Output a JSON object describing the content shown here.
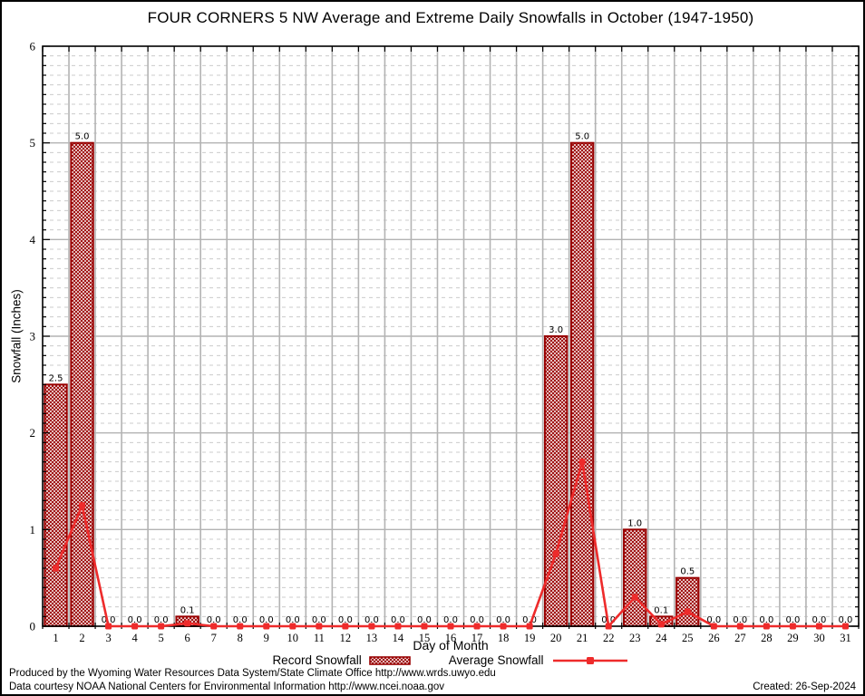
{
  "title": "FOUR CORNERS 5 NW Average and Extreme Daily Snowfalls in October (1947-1950)",
  "legend": {
    "record_label": "Record Snowfall",
    "average_label": "Average Snowfall"
  },
  "footer": {
    "line1": "Produced by the Wyoming Water Resources Data System/State Climate Office http://www.wrds.uwyo.edu",
    "line2": "Data courtesy NOAA National Centers for Environmental Information http://www.ncei.noaa.gov",
    "created": "Created: 26-Sep-2024"
  },
  "chart_data": {
    "type": "bar",
    "title": "FOUR CORNERS 5 NW Average and Extreme Daily Snowfalls in October (1947-1950)",
    "xlabel": "Day of Month",
    "ylabel": "Snowfall (Inches)",
    "ylim": [
      0,
      6
    ],
    "y_major_step": 1,
    "y_minor_step": 0.1,
    "grid": true,
    "legend_position": "bottom",
    "categories": [
      1,
      2,
      3,
      4,
      5,
      6,
      7,
      8,
      9,
      10,
      11,
      12,
      13,
      14,
      15,
      16,
      17,
      18,
      19,
      20,
      21,
      22,
      23,
      24,
      25,
      26,
      27,
      28,
      29,
      30,
      31
    ],
    "series": [
      {
        "name": "Record Snowfall",
        "type": "bar",
        "value_labels": true,
        "values": [
          2.5,
          5.0,
          0.0,
          0.0,
          0.0,
          0.1,
          0.0,
          0.0,
          0.0,
          0.0,
          0.0,
          0.0,
          0.0,
          0.0,
          0.0,
          0.0,
          0.0,
          0.0,
          0.0,
          3.0,
          5.0,
          0.0,
          1.0,
          0.1,
          0.5,
          0.0,
          0.0,
          0.0,
          0.0,
          0.0,
          0.0
        ]
      },
      {
        "name": "Average Snowfall",
        "type": "line",
        "values": [
          0.6,
          1.25,
          0.0,
          0.0,
          0.0,
          0.03,
          0.0,
          0.0,
          0.0,
          0.0,
          0.0,
          0.0,
          0.0,
          0.0,
          0.0,
          0.0,
          0.0,
          0.0,
          0.0,
          0.75,
          1.7,
          0.0,
          0.3,
          0.02,
          0.15,
          0.0,
          0.0,
          0.0,
          0.0,
          0.0,
          0.0
        ]
      }
    ],
    "colors": {
      "bar_edge": "#990000",
      "bar_hatch": "#990000",
      "bar_fill": "#ffffff",
      "line": "#ee2b2b",
      "grid_major": "#b3b3b3",
      "grid_minor": "#cccccc",
      "axis": "#000000",
      "text": "#000000"
    }
  }
}
